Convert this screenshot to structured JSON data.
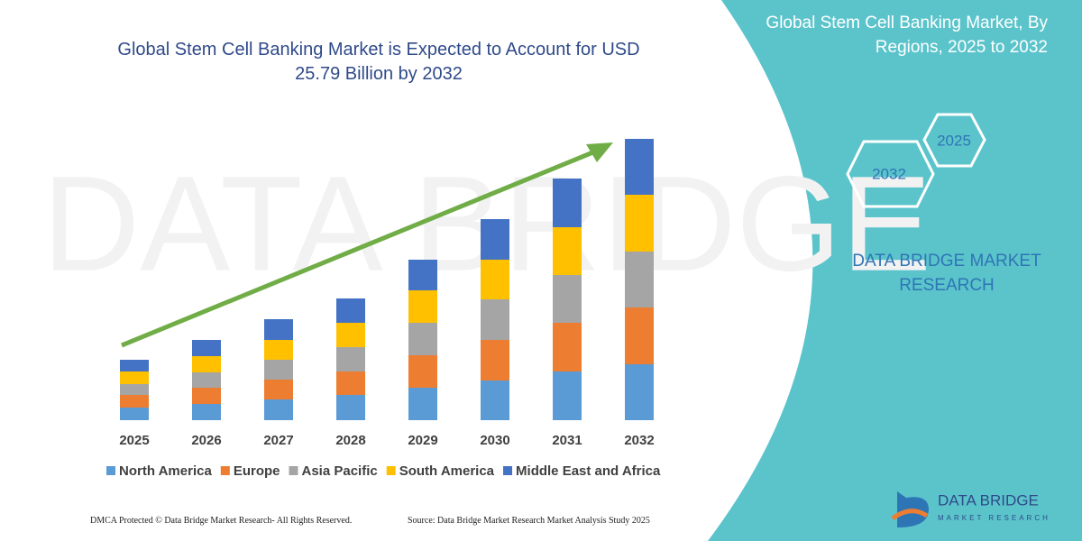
{
  "chart_data": {
    "type": "bar",
    "stacked": true,
    "title": "Global Stem Cell Banking Market is Expected to Account for USD 25.79 Billion by 2032",
    "categories": [
      "2025",
      "2026",
      "2027",
      "2028",
      "2029",
      "2030",
      "2031",
      "2032"
    ],
    "series": [
      {
        "name": "North America",
        "color": "#5b9bd5",
        "values": [
          14,
          18,
          23,
          28,
          36,
          44,
          54,
          62
        ]
      },
      {
        "name": "Europe",
        "color": "#ed7d31",
        "values": [
          14,
          18,
          22,
          26,
          36,
          45,
          54,
          63
        ]
      },
      {
        "name": "Asia Pacific",
        "color": "#a5a5a5",
        "values": [
          12,
          17,
          22,
          27,
          36,
          45,
          53,
          62
        ]
      },
      {
        "name": "South America",
        "color": "#ffc000",
        "values": [
          14,
          18,
          22,
          27,
          36,
          44,
          53,
          63
        ]
      },
      {
        "name": "Middle East and Africa",
        "color": "#4472c4",
        "values": [
          13,
          18,
          23,
          27,
          34,
          45,
          54,
          62
        ]
      }
    ]
  },
  "panel": {
    "title": "Global Stem Cell Banking Market, By Regions, 2025 to 2032",
    "hexagons": [
      "2025",
      "2032"
    ],
    "brand": "DATA BRIDGE MARKET RESEARCH"
  },
  "logo": {
    "name": "DATA BRIDGE",
    "tagline": "MARKET RESEARCH"
  },
  "footer": {
    "left": "DMCA Protected © Data Bridge Market Research- All Rights Reserved.",
    "right": "Source: Data Bridge Market Research Market Analysis Study 2025"
  }
}
